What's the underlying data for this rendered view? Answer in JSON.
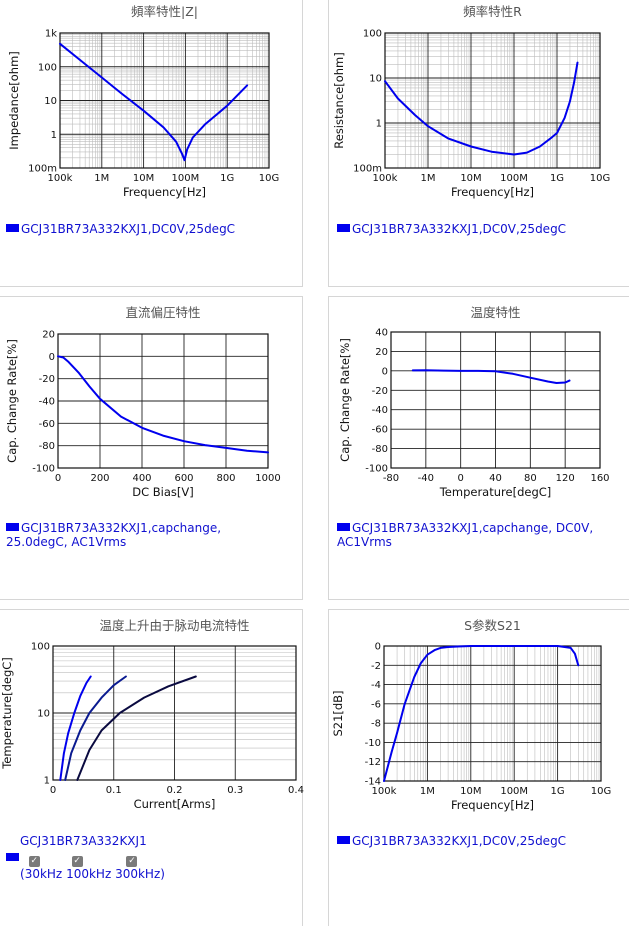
{
  "panels": [
    {
      "id": "p1",
      "legend": "GCJ31BR73A332KXJ1,DC0V,25degC"
    },
    {
      "id": "p2",
      "legend": "GCJ31BR73A332KXJ1,DC0V,25degC"
    },
    {
      "id": "p3",
      "legend": "GCJ31BR73A332KXJ1,capchange, 25.0degC, AC1Vrms"
    },
    {
      "id": "p4",
      "legend": "GCJ31BR73A332KXJ1,capchange, DC0V, AC1Vrms"
    },
    {
      "id": "p5",
      "legend": "GCJ31BR73A332KXJ1",
      "checks": [
        "30kHz",
        "100kHz",
        "300kHz"
      ]
    },
    {
      "id": "p6",
      "legend": "GCJ31BR73A332KXJ1,DC0V,25degC"
    }
  ],
  "chart_data": [
    {
      "type": "line",
      "title": "頻率特性|Z|",
      "xlabel": "Frequency[Hz]",
      "ylabel": "Impedance[ohm]",
      "xscale": "log",
      "yscale": "log",
      "xlim": [
        100000,
        10000000000
      ],
      "ylim": [
        0.1,
        1000
      ],
      "xticks": [
        {
          "v": 100000,
          "l": "100k"
        },
        {
          "v": 1000000,
          "l": "1M"
        },
        {
          "v": 10000000,
          "l": "10M"
        },
        {
          "v": 100000000,
          "l": "100M"
        },
        {
          "v": 1000000000,
          "l": "1G"
        },
        {
          "v": 10000000000,
          "l": "10G"
        }
      ],
      "yticks": [
        {
          "v": 1000,
          "l": "1k"
        },
        {
          "v": 100,
          "l": "100"
        },
        {
          "v": 10,
          "l": "10"
        },
        {
          "v": 1,
          "l": "1"
        },
        {
          "v": 0.1,
          "l": "100m"
        }
      ],
      "grid": true,
      "series": [
        {
          "color": "#0000ee",
          "x": [
            100000,
            300000,
            1000000,
            3000000,
            10000000,
            30000000,
            60000000,
            85000000,
            95000000,
            110000000,
            150000000,
            300000000,
            1000000000,
            3000000000
          ],
          "y": [
            480,
            160,
            48,
            16,
            5,
            1.6,
            0.6,
            0.25,
            0.17,
            0.35,
            0.8,
            2,
            7,
            28
          ]
        }
      ]
    },
    {
      "type": "line",
      "title": "頻率特性R",
      "xlabel": "Frequency[Hz]",
      "ylabel": "Resistance[ohm]",
      "xscale": "log",
      "yscale": "log",
      "xlim": [
        100000,
        10000000000
      ],
      "ylim": [
        0.1,
        100
      ],
      "xticks": [
        {
          "v": 100000,
          "l": "100k"
        },
        {
          "v": 1000000,
          "l": "1M"
        },
        {
          "v": 10000000,
          "l": "10M"
        },
        {
          "v": 100000000,
          "l": "100M"
        },
        {
          "v": 1000000000,
          "l": "1G"
        },
        {
          "v": 10000000000,
          "l": "10G"
        }
      ],
      "yticks": [
        {
          "v": 100,
          "l": "100"
        },
        {
          "v": 10,
          "l": "10"
        },
        {
          "v": 1,
          "l": "1"
        },
        {
          "v": 0.1,
          "l": "100m"
        }
      ],
      "grid": true,
      "series": [
        {
          "color": "#0000ee",
          "x": [
            100000,
            200000,
            500000,
            1000000,
            3000000,
            10000000,
            30000000,
            100000000,
            200000000,
            400000000,
            700000000,
            1000000000,
            1500000000,
            2000000000,
            2500000000,
            3000000000
          ],
          "y": [
            8.5,
            3.5,
            1.5,
            0.85,
            0.45,
            0.3,
            0.23,
            0.2,
            0.22,
            0.3,
            0.45,
            0.6,
            1.3,
            3,
            8,
            22
          ]
        }
      ]
    },
    {
      "type": "line",
      "title": "直流偏圧特性",
      "xlabel": "DC Bias[V]",
      "ylabel": "Cap. Change Rate[%]",
      "xscale": "linear",
      "yscale": "linear",
      "xlim": [
        0,
        1000
      ],
      "ylim": [
        -100,
        20
      ],
      "xticks": [
        {
          "v": 0,
          "l": "0"
        },
        {
          "v": 200,
          "l": "200"
        },
        {
          "v": 400,
          "l": "400"
        },
        {
          "v": 600,
          "l": "600"
        },
        {
          "v": 800,
          "l": "800"
        },
        {
          "v": 1000,
          "l": "1000"
        }
      ],
      "yticks": [
        {
          "v": 20,
          "l": "20"
        },
        {
          "v": 0,
          "l": "0"
        },
        {
          "v": -20,
          "l": "-20"
        },
        {
          "v": -40,
          "l": "-40"
        },
        {
          "v": -60,
          "l": "-60"
        },
        {
          "v": -80,
          "l": "-80"
        },
        {
          "v": -100,
          "l": "-100"
        }
      ],
      "grid": true,
      "series": [
        {
          "color": "#0000ee",
          "x": [
            0,
            25,
            50,
            100,
            150,
            200,
            300,
            400,
            500,
            600,
            700,
            800,
            900,
            1000
          ],
          "y": [
            0,
            -1,
            -5,
            -15,
            -27,
            -38,
            -54,
            -64,
            -71,
            -76,
            -79.5,
            -82,
            -84.5,
            -86
          ]
        }
      ]
    },
    {
      "type": "line",
      "title": "温度特性",
      "xlabel": "Temperature[degC]",
      "ylabel": "Cap. Change Rate[%]",
      "xscale": "linear",
      "yscale": "linear",
      "xlim": [
        -80,
        160
      ],
      "ylim": [
        -100,
        40
      ],
      "xticks": [
        {
          "v": -80,
          "l": "-80"
        },
        {
          "v": -40,
          "l": "-40"
        },
        {
          "v": 0,
          "l": "0"
        },
        {
          "v": 40,
          "l": "40"
        },
        {
          "v": 80,
          "l": "80"
        },
        {
          "v": 120,
          "l": "120"
        },
        {
          "v": 160,
          "l": "160"
        }
      ],
      "yticks": [
        {
          "v": 40,
          "l": "40"
        },
        {
          "v": 20,
          "l": "20"
        },
        {
          "v": 0,
          "l": "0"
        },
        {
          "v": -20,
          "l": "-20"
        },
        {
          "v": -40,
          "l": "-40"
        },
        {
          "v": -60,
          "l": "-60"
        },
        {
          "v": -80,
          "l": "-80"
        },
        {
          "v": -100,
          "l": "-100"
        }
      ],
      "grid": true,
      "series": [
        {
          "color": "#0000ee",
          "x": [
            -55,
            -40,
            -20,
            0,
            20,
            40,
            60,
            80,
            100,
            110,
            120,
            125
          ],
          "y": [
            0.5,
            0.7,
            0.3,
            0,
            0,
            -0.5,
            -3,
            -7,
            -11,
            -12.5,
            -12,
            -10
          ]
        }
      ]
    },
    {
      "type": "line",
      "title": "温度上升由于脉动电流特性",
      "xlabel": "Current[Arms]",
      "ylabel": "Temperature[degC]",
      "xscale": "linear",
      "yscale": "log",
      "xlim": [
        0,
        0.4
      ],
      "ylim": [
        1,
        100
      ],
      "xticks": [
        {
          "v": 0,
          "l": "0"
        },
        {
          "v": 0.1,
          "l": "0.1"
        },
        {
          "v": 0.2,
          "l": "0.2"
        },
        {
          "v": 0.3,
          "l": "0.3"
        },
        {
          "v": 0.4,
          "l": "0.4"
        }
      ],
      "yticks": [
        {
          "v": 100,
          "l": "100"
        },
        {
          "v": 10,
          "l": "10"
        },
        {
          "v": 1,
          "l": "1"
        }
      ],
      "grid": true,
      "series": [
        {
          "name": "30kHz",
          "color": "#0000ee",
          "x": [
            0.012,
            0.018,
            0.025,
            0.035,
            0.045,
            0.055,
            0.062
          ],
          "y": [
            1,
            2.5,
            5,
            10,
            18,
            28,
            35
          ]
        },
        {
          "name": "100kHz",
          "color": "#0a1a90",
          "x": [
            0.02,
            0.03,
            0.045,
            0.06,
            0.08,
            0.1,
            0.12
          ],
          "y": [
            1,
            2.5,
            5.5,
            10,
            17,
            26,
            35
          ]
        },
        {
          "name": "300kHz",
          "color": "#0a0a40",
          "x": [
            0.04,
            0.06,
            0.08,
            0.11,
            0.15,
            0.19,
            0.235
          ],
          "y": [
            1,
            2.8,
            5.5,
            10,
            17,
            25,
            35
          ]
        }
      ]
    },
    {
      "type": "line",
      "title": "S参数S21",
      "xlabel": "Frequency[Hz]",
      "ylabel": "S21[dB]",
      "xscale": "log",
      "yscale": "linear",
      "xlim": [
        100000,
        10000000000
      ],
      "ylim": [
        -14,
        0
      ],
      "xticks": [
        {
          "v": 100000,
          "l": "100k"
        },
        {
          "v": 1000000,
          "l": "1M"
        },
        {
          "v": 10000000,
          "l": "10M"
        },
        {
          "v": 100000000,
          "l": "100M"
        },
        {
          "v": 1000000000,
          "l": "1G"
        },
        {
          "v": 10000000000,
          "l": "10G"
        }
      ],
      "yticks": [
        {
          "v": 0,
          "l": "0"
        },
        {
          "v": -2,
          "l": "-2"
        },
        {
          "v": -4,
          "l": "-4"
        },
        {
          "v": -6,
          "l": "-6"
        },
        {
          "v": -8,
          "l": "-8"
        },
        {
          "v": -10,
          "l": "-10"
        },
        {
          "v": -12,
          "l": "-12"
        },
        {
          "v": -14,
          "l": "-14"
        }
      ],
      "grid": true,
      "series": [
        {
          "color": "#0000ee",
          "x": [
            100000,
            150000,
            200000,
            300000,
            500000,
            700000,
            1000000,
            1500000,
            2000000,
            3000000,
            5000000,
            10000000,
            100000000,
            1000000000,
            2000000000,
            2500000000,
            3000000000
          ],
          "y": [
            -14,
            -11,
            -9,
            -6,
            -3.2,
            -1.8,
            -0.9,
            -0.4,
            -0.2,
            -0.1,
            -0.05,
            0,
            0,
            0,
            -0.2,
            -0.8,
            -2
          ]
        }
      ]
    }
  ]
}
